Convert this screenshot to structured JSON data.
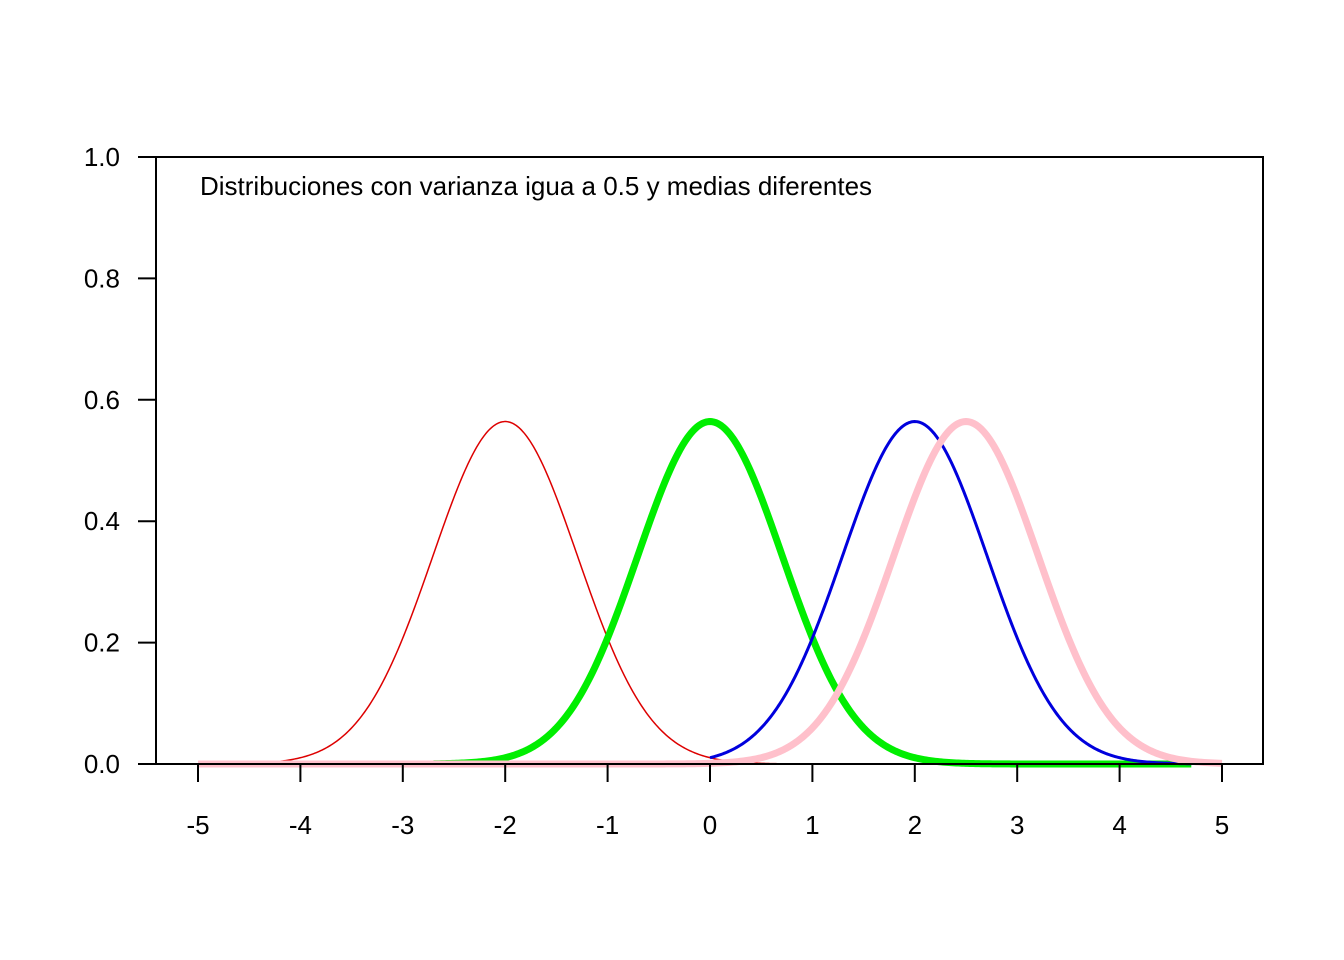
{
  "chart_data": {
    "type": "line",
    "title": "",
    "xlabel": "",
    "ylabel": "",
    "annotation": "Distribuciones con varianza igua a 0.5 y medias diferentes",
    "xlim": [
      -5,
      5
    ],
    "ylim": [
      0,
      1
    ],
    "x_ticks": [
      "-5",
      "-4",
      "-3",
      "-2",
      "-1",
      "0",
      "1",
      "2",
      "3",
      "4",
      "5"
    ],
    "y_ticks": [
      "0.0",
      "0.2",
      "0.4",
      "0.6",
      "0.8",
      "1.0"
    ],
    "grid": false,
    "legend": "none",
    "series": [
      {
        "mean": -2,
        "variance": 0.5,
        "x_range": [
          -5,
          0.7
        ],
        "color": "#dd0000",
        "style": "thin"
      },
      {
        "mean": 0,
        "variance": 0.5,
        "x_range": [
          -2.7,
          4.7
        ],
        "color": "#00ee00",
        "style": "thick"
      },
      {
        "mean": 2,
        "variance": 0.5,
        "x_range": [
          0,
          4.7
        ],
        "color": "#0000dd",
        "style": "medium"
      },
      {
        "mean": 2.5,
        "variance": 0.5,
        "x_range": [
          -5,
          5
        ],
        "color": "#ffc0cb",
        "style": "thick"
      }
    ]
  }
}
